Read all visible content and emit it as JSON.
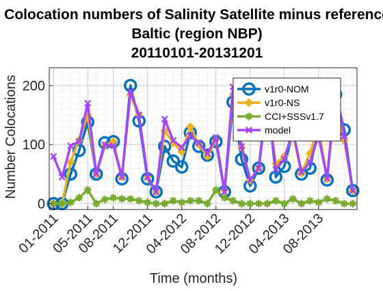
{
  "chart_data": {
    "type": "line",
    "title_lines": [
      "Colocation numbers of Salinity Satellite minus reference",
      "Baltic (region NBP)",
      "20110101-20131201"
    ],
    "xlabel": "Time (months)",
    "ylabel": "Number Colocations",
    "ylim": [
      -10,
      230
    ],
    "yticks": [
      0,
      100,
      200
    ],
    "x_month_range": [
      "2011-01",
      "2013-12"
    ],
    "xtick_labels": [
      "01-2011",
      "05-2011",
      "08-2011",
      "12-2011",
      "04-2012",
      "08-2012",
      "12-2012",
      "04-2013",
      "08-2013"
    ],
    "xtick_months": [
      "2011-01",
      "2011-05",
      "2011-08",
      "2011-12",
      "2012-04",
      "2012-08",
      "2012-12",
      "2013-04",
      "2013-08"
    ],
    "grid": "minor-dotted",
    "legend_position": "top-right",
    "series": [
      {
        "name": "v1r0-NOM",
        "color": "#0072BD",
        "marker": "circle",
        "values": [
          0,
          0,
          50,
          90,
          138,
          50,
          103,
          105,
          42,
          200,
          140,
          42,
          20,
          97,
          72,
          62,
          120,
          97,
          82,
          105,
          20,
          172,
          75,
          30,
          60,
          190,
          45,
          63,
          123,
          50,
          60,
          130,
          40,
          185,
          125,
          22
        ]
      },
      {
        "name": "v1r0-NS",
        "color": "#EDB120",
        "marker": "diamond",
        "values": [
          0,
          0,
          70,
          108,
          150,
          50,
          98,
          105,
          45,
          183,
          150,
          45,
          20,
          123,
          103,
          88,
          130,
          100,
          80,
          108,
          23,
          185,
          95,
          40,
          60,
          178,
          68,
          80,
          118,
          52,
          85,
          130,
          42,
          178,
          107,
          22
        ]
      },
      {
        "name": "CCI+SSSv1.7",
        "color": "#77AC30",
        "marker": "star",
        "values": [
          0,
          0,
          2,
          10,
          23,
          0,
          7,
          10,
          8,
          8,
          5,
          2,
          0,
          0,
          5,
          2,
          5,
          5,
          0,
          23,
          10,
          5,
          0,
          0,
          0,
          0,
          5,
          0,
          8,
          0,
          5,
          2,
          8,
          5,
          0,
          0
        ]
      },
      {
        "name": "model",
        "color": "#A347FF",
        "marker": "x",
        "values": [
          80,
          45,
          98,
          105,
          170,
          50,
          100,
          98,
          45,
          190,
          150,
          45,
          20,
          143,
          107,
          95,
          115,
          103,
          85,
          112,
          20,
          198,
          97,
          40,
          60,
          175,
          58,
          75,
          125,
          53,
          70,
          115,
          42,
          198,
          115,
          22
        ]
      }
    ]
  }
}
